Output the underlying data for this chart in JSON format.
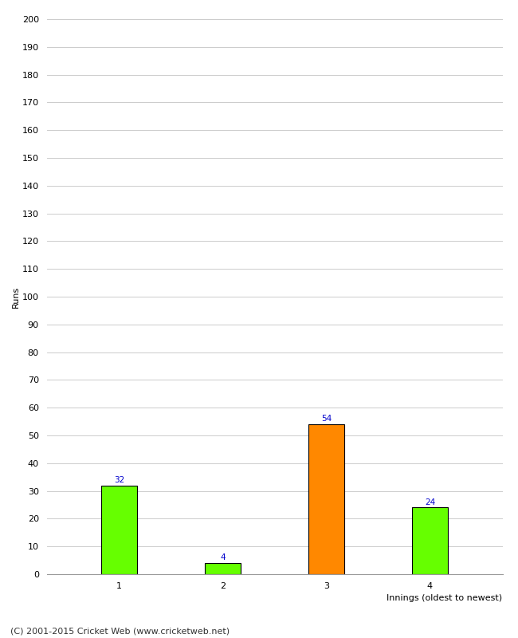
{
  "categories": [
    "1",
    "2",
    "3",
    "4"
  ],
  "values": [
    32,
    4,
    54,
    24
  ],
  "bar_colors": [
    "#66ff00",
    "#66ff00",
    "#ff8800",
    "#66ff00"
  ],
  "bar_edge_colors": [
    "#000000",
    "#000000",
    "#000000",
    "#000000"
  ],
  "ylabel": "Runs",
  "xlabel": "Innings (oldest to newest)",
  "ylim": [
    0,
    200
  ],
  "yticks": [
    0,
    10,
    20,
    30,
    40,
    50,
    60,
    70,
    80,
    90,
    100,
    110,
    120,
    130,
    140,
    150,
    160,
    170,
    180,
    190,
    200
  ],
  "value_label_color": "#0000cc",
  "value_label_fontsize": 7.5,
  "axis_label_fontsize": 8,
  "tick_fontsize": 8,
  "background_color": "#ffffff",
  "footer_text": "(C) 2001-2015 Cricket Web (www.cricketweb.net)",
  "footer_fontsize": 8,
  "bar_width": 0.35
}
